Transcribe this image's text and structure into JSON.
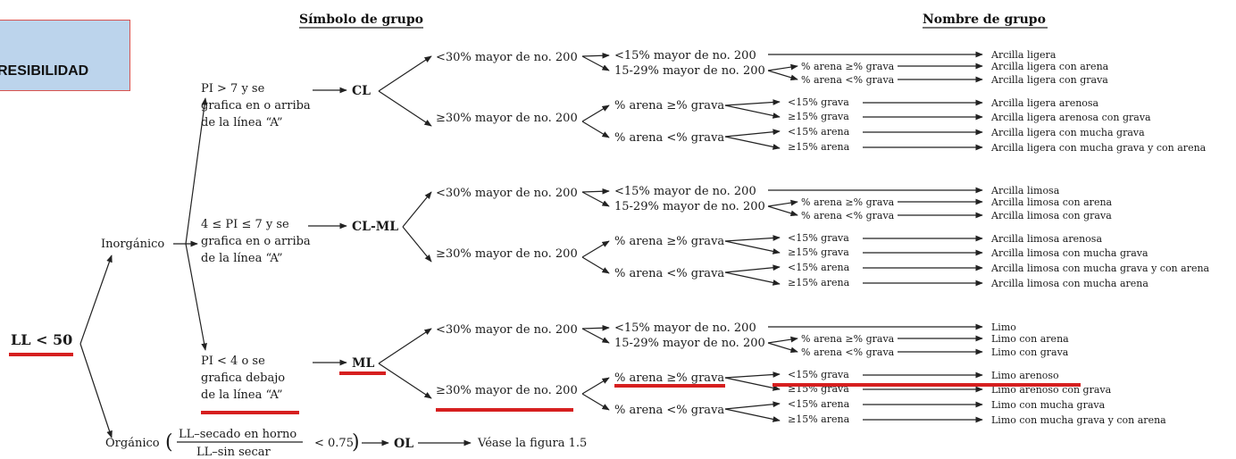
{
  "headers": {
    "symbol": "Símbolo de grupo",
    "name": "Nombre de grupo"
  },
  "badge": {
    "text": "RESIBILIDAD",
    "bg": "#bcd4ec",
    "border": "#d9534f"
  },
  "root": "LL < 50",
  "inorganic": "Inorgánico",
  "organic": {
    "label": "Orgánico",
    "num": "LL–secado en horno",
    "den": "LL–sin secar",
    "cond": "< 0.75",
    "symbol": "OL",
    "ref": "Véase la figura 1.5"
  },
  "conditions": [
    {
      "lines": [
        "PI > 7 y se",
        "grafica en o arriba",
        "de la línea “A”"
      ],
      "symbol": "CL"
    },
    {
      "lines": [
        "4 ≤ PI ≤ 7 y se",
        "grafica en o arriba",
        "de la línea “A”"
      ],
      "symbol": "CL-ML"
    },
    {
      "lines": [
        "PI < 4 o se",
        "grafica debajo",
        "de la línea “A”"
      ],
      "symbol": "ML"
    }
  ],
  "fines": {
    "lt30": "<30% mayor de no. 200",
    "ge30": "≥30% mayor de no. 200"
  },
  "sub": {
    "lt15": "<15% mayor de no. 200",
    "r1529": "15-29% mayor de no. 200",
    "sand_ge": "% arena ≥% grava",
    "sand_lt": "% arena <% grava"
  },
  "small": {
    "sand_ge": "% arena ≥% grava",
    "sand_lt": "% arena <% grava",
    "grava_lt15": "<15% grava",
    "grava_ge15": "≥15% grava",
    "arena_lt15": "<15% arena",
    "arena_ge15": "≥15% arena"
  },
  "names": [
    [
      "Arcilla ligera",
      "Arcilla ligera con arena",
      "Arcilla ligera con grava",
      "Arcilla ligera arenosa",
      "Arcilla ligera arenosa con grava",
      "Arcilla ligera con mucha grava",
      "Arcilla ligera con mucha grava y con arena"
    ],
    [
      "Arcilla limosa",
      "Arcilla limosa con arena",
      "Arcilla limosa con grava",
      "Arcilla limosa arenosa",
      "Arcilla limosa con mucha grava",
      "Arcilla limosa con mucha grava y con arena",
      "Arcilla limosa con mucha arena"
    ],
    [
      "Limo",
      "Limo con arena",
      "Limo con grava",
      "Limo arenoso",
      "Limo arenoso con grava",
      "Limo con mucha grava",
      "Limo con mucha grava y con arena"
    ]
  ]
}
